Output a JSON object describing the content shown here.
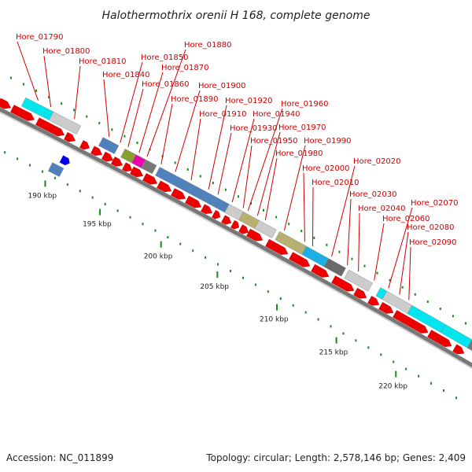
{
  "title": "Halothermothrix orenii H 168, complete genome",
  "footer": {
    "accession": "Accession: NC_011899",
    "summary": "Topology: circular; Length: 2,578,146 bp; Genes: 2,409"
  },
  "colors": {
    "label": "#cc0000",
    "forward_cds": "#ee0000",
    "backbone": "#999999",
    "tick": "#1a8a1a"
  },
  "scale_labels": [
    "190 kbp",
    "195 kbp",
    "200 kbp",
    "205 kbp",
    "210 kbp",
    "215 kbp",
    "220 kbp"
  ],
  "gene_labels": [
    "Hore_01790",
    "Hore_01800",
    "Hore_01810",
    "Hore_01840",
    "Hore_01850",
    "Hore_01860",
    "Hore_01870",
    "Hore_01880",
    "Hore_01890",
    "Hore_01900",
    "Hore_01910",
    "Hore_01920",
    "Hore_01930",
    "Hore_01940",
    "Hore_01950",
    "Hore_01960",
    "Hore_01970",
    "Hore_01980",
    "Hore_01990",
    "Hore_02000",
    "Hore_02010",
    "Hore_02020",
    "Hore_02030",
    "Hore_02040",
    "Hore_02060",
    "Hore_02070",
    "Hore_02080",
    "Hore_02090"
  ]
}
